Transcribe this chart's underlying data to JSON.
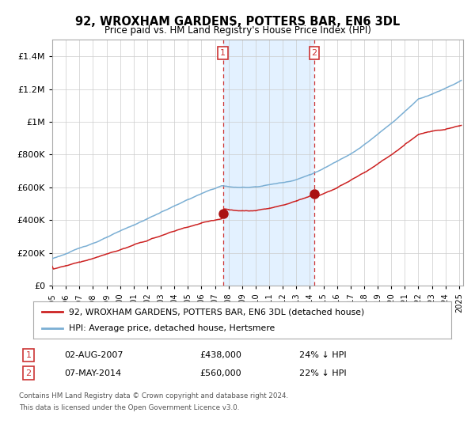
{
  "title": "92, WROXHAM GARDENS, POTTERS BAR, EN6 3DL",
  "subtitle": "Price paid vs. HM Land Registry's House Price Index (HPI)",
  "legend_line1": "92, WROXHAM GARDENS, POTTERS BAR, EN6 3DL (detached house)",
  "legend_line2": "HPI: Average price, detached house, Hertsmere",
  "transaction1_date_str": "02-AUG-2007",
  "transaction1_x": 2007.583,
  "transaction1_price": 438000,
  "transaction1_label": "24% ↓ HPI",
  "transaction2_date_str": "07-MAY-2014",
  "transaction2_x": 2014.333,
  "transaction2_price": 560000,
  "transaction2_label": "22% ↓ HPI",
  "hpi_color": "#7bafd4",
  "price_color": "#cc2222",
  "marker_color": "#aa1111",
  "shade_color": "#ddeeff",
  "vline_color": "#cc3333",
  "background_color": "#ffffff",
  "grid_color": "#cccccc",
  "footnote_line1": "Contains HM Land Registry data © Crown copyright and database right 2024.",
  "footnote_line2": "This data is licensed under the Open Government Licence v3.0.",
  "ylim_max": 1500000,
  "yticks": [
    0,
    200000,
    400000,
    600000,
    800000,
    1000000,
    1200000,
    1400000
  ],
  "xmin": 1995.0,
  "xmax": 2025.3
}
